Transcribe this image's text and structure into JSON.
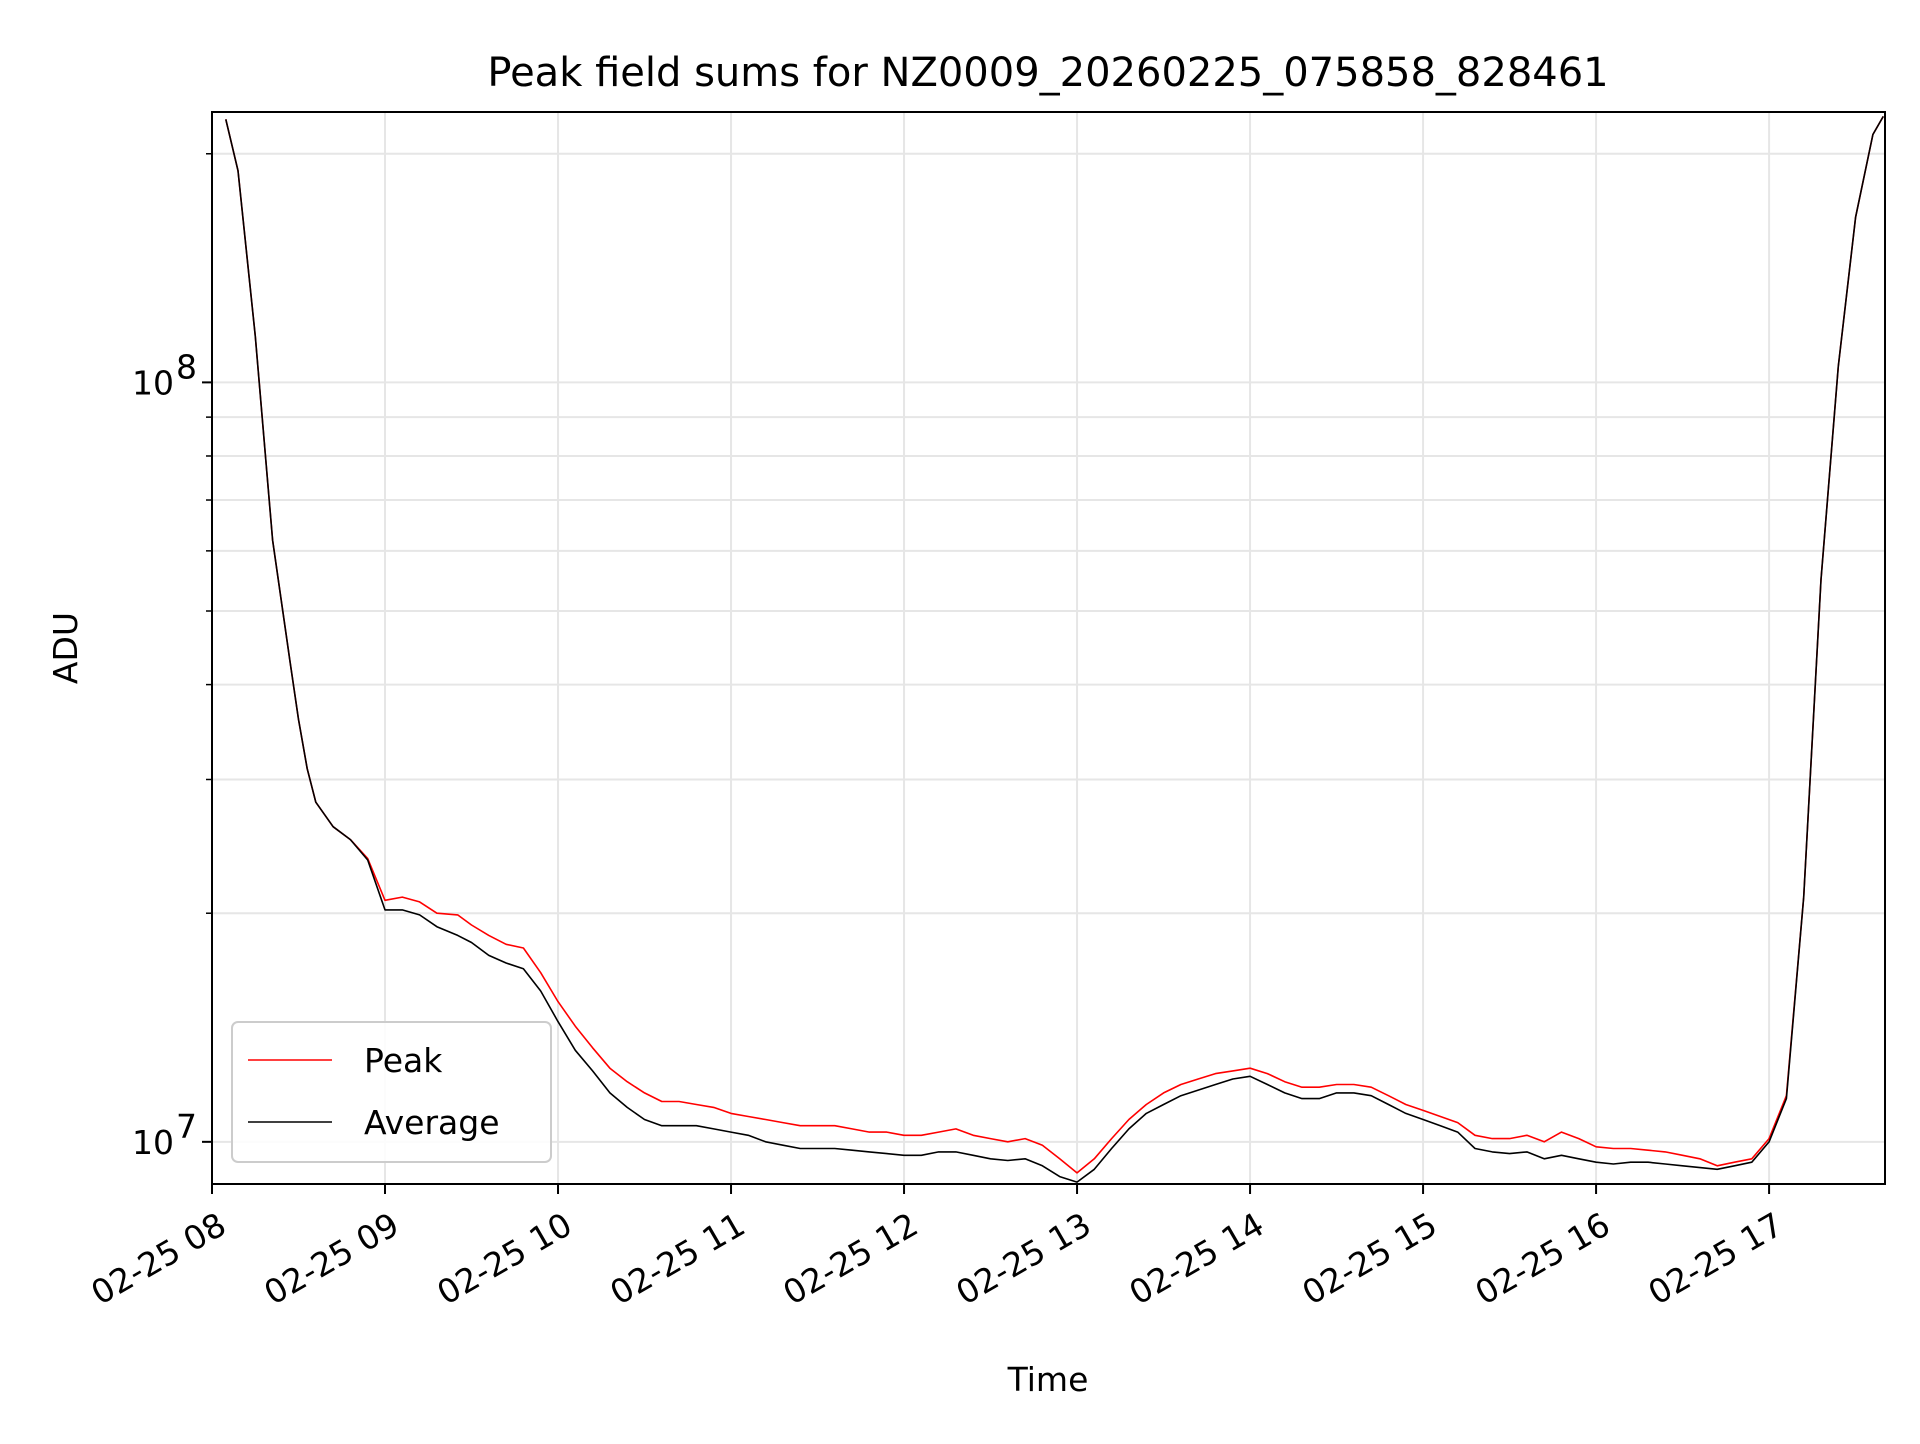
{
  "chart_data": {
    "type": "line",
    "title": "Peak field sums for NZ0009_20260225_075858_828461",
    "xlabel": "Time",
    "ylabel": "ADU",
    "x_unit": "hours (time of day, 2026-02-25)",
    "xlim": [
      8.0,
      17.67
    ],
    "ylim": [
      8800000,
      227000000
    ],
    "yscale": "log",
    "grid": true,
    "legend_position": "lower-left",
    "x_ticks": [
      {
        "value": 8,
        "label": "02-25 08"
      },
      {
        "value": 9,
        "label": "02-25 09"
      },
      {
        "value": 10,
        "label": "02-25 10"
      },
      {
        "value": 11,
        "label": "02-25 11"
      },
      {
        "value": 12,
        "label": "02-25 12"
      },
      {
        "value": 13,
        "label": "02-25 13"
      },
      {
        "value": 14,
        "label": "02-25 14"
      },
      {
        "value": 15,
        "label": "02-25 15"
      },
      {
        "value": 16,
        "label": "02-25 16"
      },
      {
        "value": 17,
        "label": "02-25 17"
      }
    ],
    "y_major_ticks": [
      {
        "value": 10000000,
        "base": "10",
        "exp": "7"
      },
      {
        "value": 100000000,
        "base": "10",
        "exp": "8"
      }
    ],
    "y_minor_ticks": [
      20000000,
      30000000,
      40000000,
      50000000,
      60000000,
      70000000,
      80000000,
      90000000,
      200000000
    ],
    "series": [
      {
        "name": "Peak",
        "color": "#ff0000",
        "x": [
          8.08,
          8.15,
          8.25,
          8.35,
          8.45,
          8.5,
          8.55,
          8.6,
          8.7,
          8.8,
          8.9,
          9.0,
          9.1,
          9.2,
          9.3,
          9.42,
          9.5,
          9.6,
          9.7,
          9.8,
          9.9,
          10.0,
          10.1,
          10.2,
          10.3,
          10.4,
          10.5,
          10.6,
          10.7,
          10.8,
          10.9,
          11.0,
          11.1,
          11.2,
          11.3,
          11.4,
          11.5,
          11.6,
          11.7,
          11.8,
          11.9,
          12.0,
          12.1,
          12.2,
          12.3,
          12.4,
          12.5,
          12.6,
          12.7,
          12.8,
          12.9,
          13.0,
          13.1,
          13.2,
          13.3,
          13.4,
          13.5,
          13.6,
          13.7,
          13.8,
          13.9,
          14.0,
          14.1,
          14.2,
          14.3,
          14.4,
          14.5,
          14.6,
          14.7,
          14.8,
          14.9,
          15.0,
          15.1,
          15.2,
          15.3,
          15.4,
          15.5,
          15.6,
          15.7,
          15.8,
          15.9,
          16.0,
          16.1,
          16.2,
          16.3,
          16.4,
          16.5,
          16.6,
          16.7,
          16.8,
          16.9,
          17.0,
          17.1,
          17.2,
          17.3,
          17.4,
          17.5,
          17.6,
          17.66
        ],
        "values": [
          222000000,
          190000000,
          115000000,
          62000000,
          43000000,
          36000000,
          31000000,
          28000000,
          26000000,
          25000000,
          23600000,
          20800000,
          21000000,
          20700000,
          20000000,
          19900000,
          19300000,
          18700000,
          18200000,
          18000000,
          16700000,
          15300000,
          14200000,
          13300000,
          12500000,
          12000000,
          11600000,
          11300000,
          11300000,
          11200000,
          11100000,
          10900000,
          10800000,
          10700000,
          10600000,
          10500000,
          10500000,
          10500000,
          10400000,
          10300000,
          10300000,
          10200000,
          10200000,
          10300000,
          10400000,
          10200000,
          10100000,
          10000000,
          10100000,
          9900000,
          9500000,
          9100000,
          9500000,
          10100000,
          10700000,
          11200000,
          11600000,
          11900000,
          12100000,
          12300000,
          12400000,
          12500000,
          12300000,
          12000000,
          11800000,
          11800000,
          11900000,
          11900000,
          11800000,
          11500000,
          11200000,
          11000000,
          10800000,
          10600000,
          10200000,
          10100000,
          10100000,
          10200000,
          10000000,
          10300000,
          10100000,
          9850000,
          9800000,
          9800000,
          9750000,
          9700000,
          9600000,
          9500000,
          9300000,
          9400000,
          9500000,
          10100000,
          11500000,
          21000000,
          55000000,
          105000000,
          165000000,
          212000000,
          224000000
        ]
      },
      {
        "name": "Average",
        "color": "#000000",
        "x": [
          8.08,
          8.15,
          8.25,
          8.35,
          8.45,
          8.5,
          8.55,
          8.6,
          8.7,
          8.8,
          8.9,
          9.0,
          9.1,
          9.2,
          9.3,
          9.42,
          9.5,
          9.6,
          9.7,
          9.8,
          9.9,
          10.0,
          10.1,
          10.2,
          10.3,
          10.4,
          10.5,
          10.6,
          10.7,
          10.8,
          10.9,
          11.0,
          11.1,
          11.2,
          11.3,
          11.4,
          11.5,
          11.6,
          11.7,
          11.8,
          11.9,
          12.0,
          12.1,
          12.2,
          12.3,
          12.4,
          12.5,
          12.6,
          12.7,
          12.8,
          12.9,
          13.0,
          13.1,
          13.2,
          13.3,
          13.4,
          13.5,
          13.6,
          13.7,
          13.8,
          13.9,
          14.0,
          14.1,
          14.2,
          14.3,
          14.4,
          14.5,
          14.6,
          14.7,
          14.8,
          14.9,
          15.0,
          15.1,
          15.2,
          15.3,
          15.4,
          15.5,
          15.6,
          15.7,
          15.8,
          15.9,
          16.0,
          16.1,
          16.2,
          16.3,
          16.4,
          16.5,
          16.6,
          16.7,
          16.8,
          16.9,
          17.0,
          17.1,
          17.2,
          17.3,
          17.4,
          17.5,
          17.6,
          17.66
        ],
        "values": [
          222000000,
          190000000,
          115000000,
          62000000,
          43000000,
          36000000,
          31000000,
          28000000,
          26000000,
          25000000,
          23500000,
          20200000,
          20200000,
          19900000,
          19200000,
          18700000,
          18300000,
          17600000,
          17200000,
          16900000,
          15800000,
          14400000,
          13200000,
          12400000,
          11600000,
          11100000,
          10700000,
          10500000,
          10500000,
          10500000,
          10400000,
          10300000,
          10200000,
          10000000,
          9900000,
          9800000,
          9800000,
          9800000,
          9750000,
          9700000,
          9650000,
          9600000,
          9600000,
          9700000,
          9700000,
          9600000,
          9500000,
          9450000,
          9500000,
          9300000,
          9000000,
          8850000,
          9200000,
          9800000,
          10400000,
          10900000,
          11200000,
          11500000,
          11700000,
          11900000,
          12100000,
          12200000,
          11900000,
          11600000,
          11400000,
          11400000,
          11600000,
          11600000,
          11500000,
          11200000,
          10900000,
          10700000,
          10500000,
          10300000,
          9800000,
          9700000,
          9650000,
          9700000,
          9500000,
          9600000,
          9500000,
          9400000,
          9350000,
          9400000,
          9400000,
          9350000,
          9300000,
          9250000,
          9200000,
          9300000,
          9400000,
          10000000,
          11400000,
          21000000,
          55000000,
          105000000,
          165000000,
          212000000,
          224000000
        ]
      }
    ]
  }
}
